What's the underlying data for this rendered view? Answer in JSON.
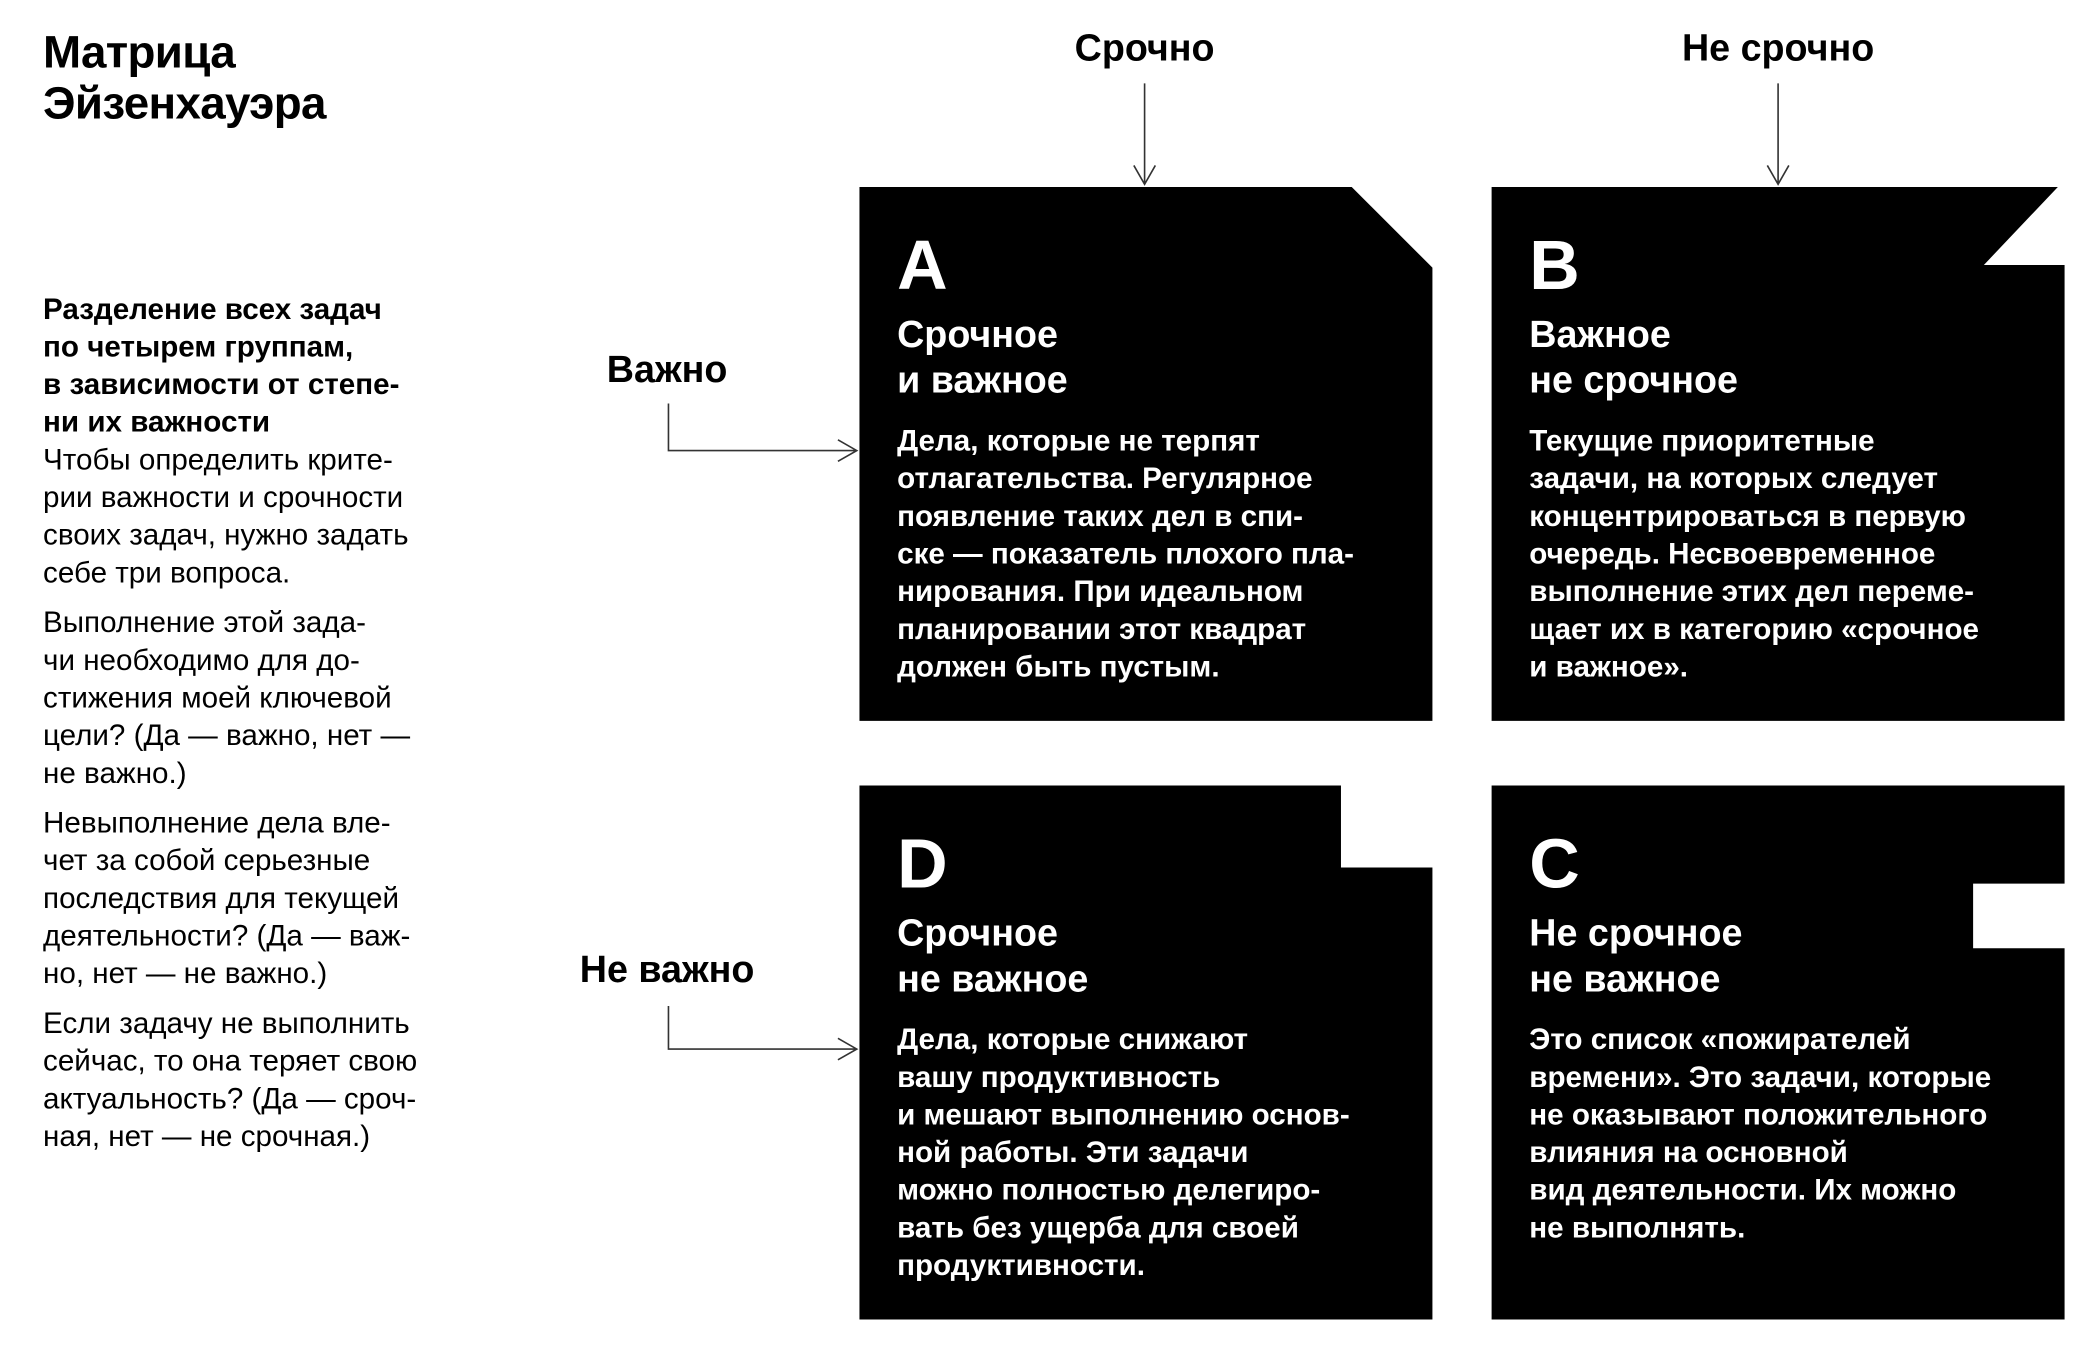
{
  "title": "Матрица\nЭйзенхауэра",
  "intro": {
    "lead": "Разделение всех задач\nпо четырем группам,\nв зависимости от степе-\nни их важности",
    "paragraphs": [
      "Чтобы определить крите-\nрии важности и срочности\nсвоих задач, нужно задать\nсебе три вопроса.",
      "Выполнение этой зада-\nчи необходимо для до-\nстижения моей ключевой\nцели? (Да — важно, нет —\nне важно.)",
      "Невыполнение дела вле-\nчет за собой серьезные\nпоследствия для текущей\nдеятельности? (Да — важ-\nно, нет — не важно.)",
      "Если задачу не выполнить\nсейчас, то она теряет свою\nактуальность? (Да — сроч-\nная, нет — не срочная.)"
    ]
  },
  "columns": [
    "Срочно",
    "Не срочно"
  ],
  "rows": [
    "Важно",
    "Не важно"
  ],
  "quadrants": {
    "a": {
      "letter": "A",
      "subtitle": "Срочное\nи важное",
      "text": "Дела, которые не терпят\nотлагательства. Регулярное\nпоявление таких дел в спи-\nске — показатель плохого пла-\nнирования. При идеальном\nпланировании этот квадрат\nдолжен быть пустым."
    },
    "b": {
      "letter": "B",
      "subtitle": "Важное\nне срочное",
      "text": "Текущие приоритетные\nзадачи, на которых следует\nконцентрироваться в первую\nочередь. Несвоевременное\nвыполнение этих дел переме-\nщает их в категорию «срочное\nи важное»."
    },
    "d": {
      "letter": "D",
      "subtitle": "Срочное\nне важное",
      "text": "Дела, которые снижают\nвашу продуктивность\nи мешают выполнению основ-\nной работы. Эти задачи\nможно полностью делегиро-\nвать без ущерба для своей\nпродуктивности."
    },
    "c": {
      "letter": "C",
      "subtitle": "Не срочное\nне важное",
      "text": "Это список «пожирателей\nвремени». Это задачи, которые\nне оказывают положительного\nвлияния на основной\nвид деятельности. Их можно\nне выполнять."
    }
  },
  "colors": {
    "box": "#000000",
    "text": "#ffffff",
    "arrow": "#333333"
  }
}
